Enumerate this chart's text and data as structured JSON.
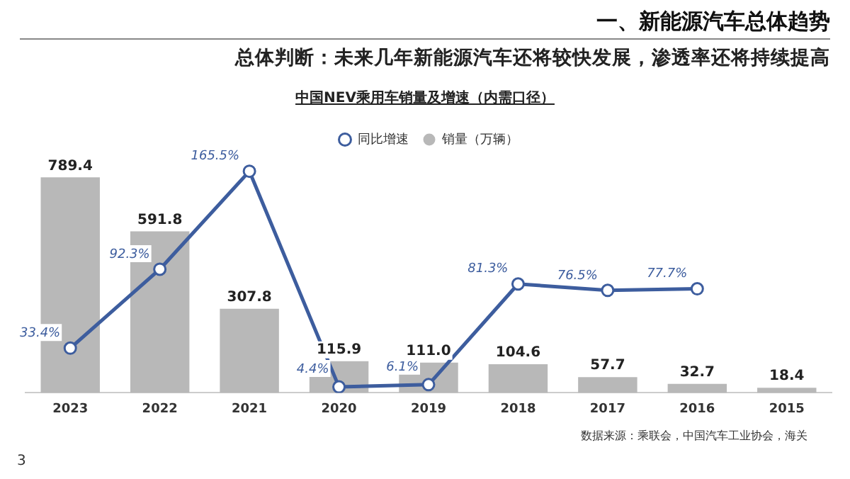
{
  "chart_data": {
    "type": "bar",
    "title": "中国NEV乘用车销量及增速（内需口径）",
    "annotations": [
      "一、新能源汽车总体趋势",
      "总体判断：未来几年新能源汽车还将较快发展，渗透率还将持续提高",
      "数据来源：乘联会，中国汽车工业协会，海关",
      "3"
    ],
    "categories": [
      "2023",
      "2022",
      "2021",
      "2020",
      "2019",
      "2018",
      "2017",
      "2016",
      "2015"
    ],
    "series": [
      {
        "name": "同比增速",
        "type": "line",
        "axis": "y2",
        "color": "#3d5d9e",
        "marker": "circle",
        "values": [
          33.4,
          92.3,
          165.5,
          4.4,
          6.1,
          81.3,
          76.5,
          77.7,
          null
        ],
        "value_labels": [
          "33.4%",
          "92.3%",
          "165.5%",
          "4.4%",
          "6.1%",
          "81.3%",
          "76.5%",
          "77.7%",
          null
        ]
      },
      {
        "name": "销量（万辆）",
        "color": "#b8b8b8",
        "values": [
          789.4,
          591.8,
          307.8,
          115.9,
          111.0,
          104.6,
          57.7,
          32.7,
          18.4
        ],
        "value_labels": [
          "789.4",
          "591.8",
          "307.8",
          "115.9",
          "111.0",
          "104.6",
          "57.7",
          "32.7",
          "18.4"
        ]
      }
    ],
    "legend": "top",
    "grid": false
  }
}
